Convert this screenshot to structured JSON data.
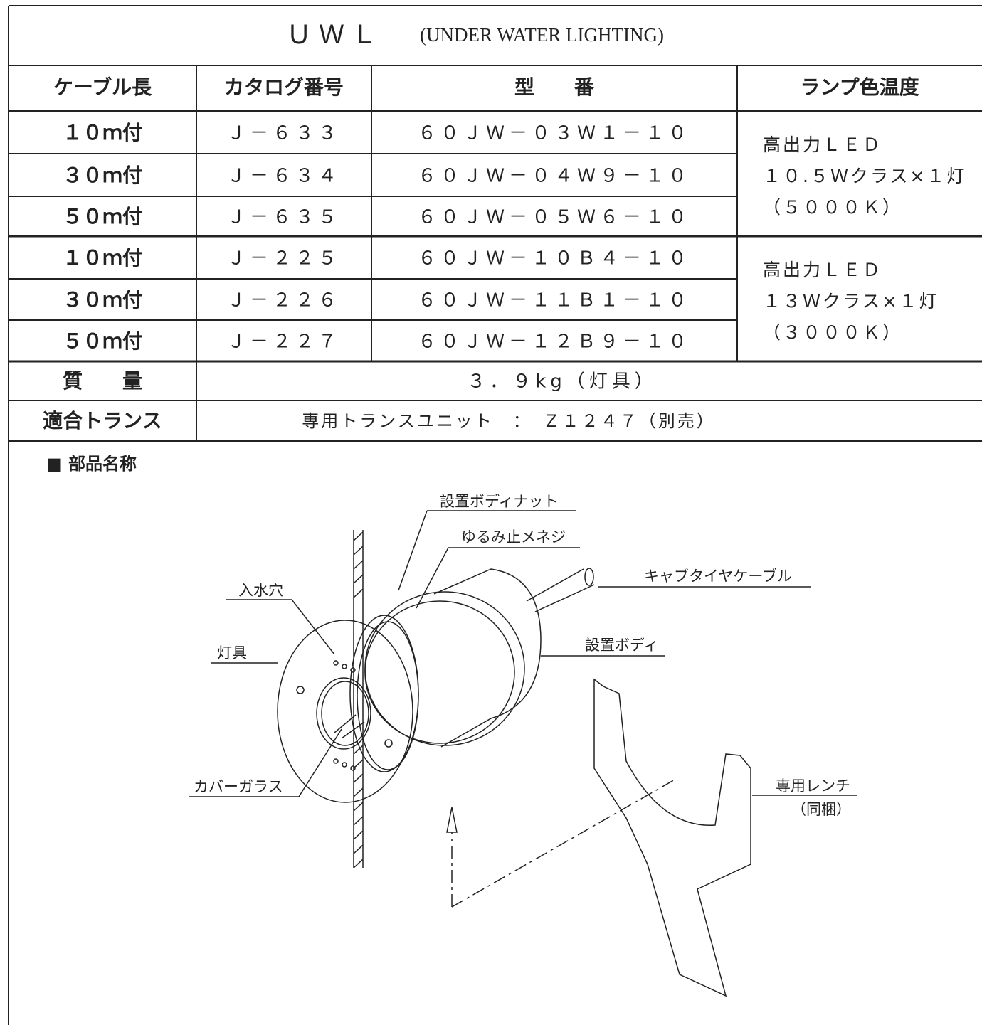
{
  "title": {
    "main": "ＵＷＬ",
    "sub": "(UNDER WATER LIGHTING)"
  },
  "table": {
    "header": [
      "ケーブル長",
      "カタログ番号",
      "型　　番",
      "ランプ色温度"
    ],
    "rows": [
      [
        "１０ｍ付",
        "Ｊ－６３３",
        "６０ＪＷ－０３Ｗ１－１０"
      ],
      [
        "３０ｍ付",
        "Ｊ－６３４",
        "６０ＪＷ－０４Ｗ９－１０"
      ],
      [
        "５０ｍ付",
        "Ｊ－６３５",
        "６０ＪＷ－０５Ｗ６－１０"
      ],
      [
        "１０ｍ付",
        "Ｊ－２２５",
        "６０ＪＷ－１０Ｂ４－１０"
      ],
      [
        "３０ｍ付",
        "Ｊ－２２６",
        "６０ＪＷ－１１Ｂ１－１０"
      ],
      [
        "５０ｍ付",
        "Ｊ－２２７",
        "６０ＪＷ－１２Ｂ９－１０"
      ]
    ],
    "groups": [
      [
        "高出力ＬＥＤ",
        "１０.５Ｗクラス×１灯",
        "（５０００Ｋ）"
      ],
      [
        "高出力ＬＥＤ",
        "１３Ｗクラス×１灯",
        "（３０００Ｋ）"
      ]
    ],
    "weight": {
      "label": "質　　量",
      "value": "３．９kg（灯具）"
    },
    "transformer": {
      "label": "適合トランス",
      "value": "専用トランスユニット　：　Ｚ１２４７（別売）"
    }
  },
  "diagram": {
    "heading": "■ 部品名称",
    "labels": [
      "設置ボディナット",
      "ゆるみ止メネジ",
      "キャブタイヤケーブル",
      "入水穴",
      "灯具",
      "設置ボディ",
      "カバーガラス",
      "専用レンチ",
      "（同梱）"
    ]
  }
}
